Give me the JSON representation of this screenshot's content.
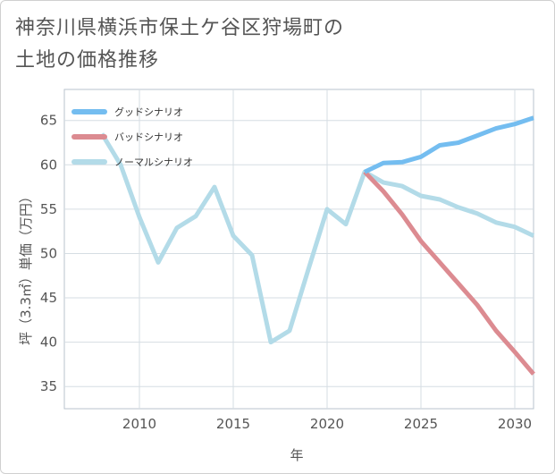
{
  "chart_data": {
    "type": "line",
    "title": [
      "神奈川県横浜市保土ケ谷区狩場町の",
      "土地の価格推移"
    ],
    "xlabel": "年",
    "ylabel": "坪（3.3㎡）単価（万円）",
    "xlim": [
      2006,
      2031
    ],
    "ylim": [
      32.5,
      68.5
    ],
    "xticks": [
      2010,
      2015,
      2020,
      2025,
      2030
    ],
    "yticks": [
      35,
      40,
      45,
      50,
      55,
      60,
      65
    ],
    "grid": true,
    "legend_position": "top-left",
    "series": [
      {
        "name": "グッドシナリオ",
        "color": "#74bdf0",
        "x": [
          2022,
          2023,
          2024,
          2025,
          2026,
          2027,
          2028,
          2029,
          2030,
          2031
        ],
        "values": [
          59.2,
          60.2,
          60.3,
          60.9,
          62.2,
          62.5,
          63.3,
          64.1,
          64.6,
          65.3
        ]
      },
      {
        "name": "バッドシナリオ",
        "color": "#dc8b91",
        "x": [
          2022,
          2023,
          2024,
          2025,
          2026,
          2027,
          2028,
          2029,
          2030,
          2031
        ],
        "values": [
          59.2,
          57.0,
          54.4,
          51.4,
          49.0,
          46.6,
          44.2,
          41.3,
          38.9,
          36.4
        ]
      },
      {
        "name": "ノーマルシナリオ",
        "color": "#b3dbe8",
        "x": [
          2008,
          2009,
          2010,
          2011,
          2012,
          2013,
          2014,
          2015,
          2016,
          2017,
          2018,
          2019,
          2020,
          2021,
          2022,
          2023,
          2024,
          2025,
          2026,
          2027,
          2028,
          2029,
          2030,
          2031
        ],
        "values": [
          63.5,
          60.0,
          54.1,
          49.0,
          52.9,
          54.2,
          57.5,
          52.0,
          49.8,
          40.0,
          41.3,
          48.2,
          55.0,
          53.3,
          59.2,
          58.0,
          57.6,
          56.5,
          56.1,
          55.2,
          54.5,
          53.5,
          53.0,
          52.0
        ]
      }
    ]
  }
}
